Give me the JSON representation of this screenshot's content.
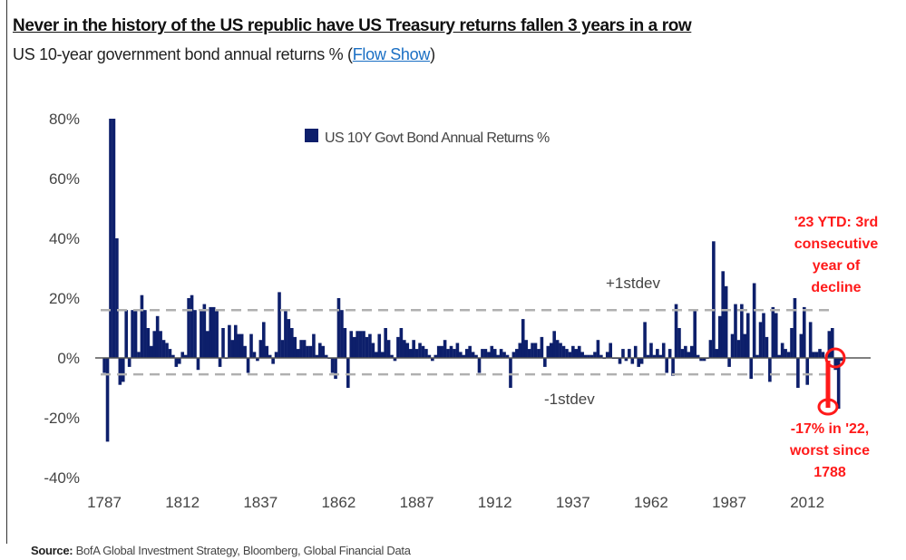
{
  "header": {
    "title": "Never in the history of the US republic have US Treasury returns fallen 3 years in a row",
    "subtitle_prefix": "US 10-year government bond annual returns % (",
    "subtitle_link": "Flow Show",
    "subtitle_suffix": ")"
  },
  "source": {
    "label": "Source:",
    "text": " BofA Global Investment Strategy, Bloomberg, Global Financial Data"
  },
  "colors": {
    "bar": "#0d1f6b",
    "annotation": "#ff1a1a",
    "stdev": "#b0b0b0"
  },
  "chart_data": {
    "type": "bar",
    "title": "US 10-year government bond annual returns %",
    "legend": "US 10Y Govt Bond Annual Returns %",
    "legend_position": "top-center",
    "x_start": 1787,
    "x_ticks": [
      "1787",
      "1812",
      "1837",
      "1862",
      "1887",
      "1912",
      "1937",
      "1962",
      "1987",
      "2012"
    ],
    "y_ticks": [
      "80%",
      "60%",
      "40%",
      "20%",
      "0%",
      "-20%",
      "-40%"
    ],
    "ylim": [
      -40,
      80
    ],
    "stdev_plus": 16,
    "stdev_minus": -5.5,
    "stdev_plus_label": "+1stdev",
    "stdev_minus_label": "-1stdev",
    "values": [
      -5,
      -28,
      80,
      80,
      40,
      -9,
      -8,
      16,
      -3,
      16,
      16,
      2,
      21,
      16,
      10,
      4,
      9,
      14,
      9,
      6,
      5,
      3,
      1,
      -3,
      -2,
      2,
      1,
      20,
      21,
      16,
      -4,
      16,
      18,
      9,
      17,
      17,
      16,
      -3,
      10,
      0,
      11,
      6,
      11,
      8,
      8,
      4,
      -5,
      8,
      2,
      -1,
      6,
      12,
      4,
      1,
      -2,
      2,
      22,
      6,
      16,
      13,
      10,
      7,
      3,
      6,
      6,
      4,
      4,
      8,
      1,
      5,
      4,
      1,
      0,
      -5,
      -7,
      20,
      16,
      10,
      -10,
      9,
      7,
      9,
      9,
      9,
      7,
      8,
      5,
      2,
      8,
      2,
      10,
      6,
      1,
      -1,
      7,
      10,
      6,
      5,
      3,
      6,
      3,
      5,
      4,
      3,
      1,
      -1,
      1,
      4,
      4,
      6,
      3,
      4,
      3,
      5,
      2,
      1,
      3,
      4,
      2,
      1,
      -5,
      3,
      3,
      2,
      4,
      3,
      1,
      3,
      2,
      1,
      -10,
      2,
      3,
      5,
      13,
      6,
      3,
      5,
      5,
      3,
      7,
      -3,
      4,
      5,
      9,
      6,
      5,
      4,
      3,
      2,
      4,
      3,
      4,
      2,
      1,
      1,
      1,
      2,
      6,
      1,
      0,
      2,
      5,
      0,
      0,
      -2,
      3,
      -1,
      3,
      -2,
      4,
      -3,
      -2,
      12,
      1,
      5,
      1,
      3,
      1,
      5,
      -5,
      3,
      -6,
      18,
      10,
      3,
      4,
      2,
      4,
      16,
      1,
      -1,
      -1,
      0,
      6,
      39,
      3,
      14,
      29,
      24,
      -3,
      8,
      18,
      6,
      18,
      8,
      15,
      -7,
      25,
      1,
      12,
      15,
      7,
      -8,
      17,
      15,
      1,
      5,
      3,
      2,
      10,
      20,
      -10,
      8,
      17,
      -9,
      12,
      2,
      2,
      3,
      2,
      0,
      9,
      10,
      -4,
      -17,
      -1
    ],
    "annotations": {
      "ytd_lines": [
        "'23 YTD: 3rd",
        "consecutive",
        "year of",
        "decline"
      ],
      "worst_lines": [
        "-17% in '22,",
        "worst since",
        "1788"
      ]
    }
  }
}
